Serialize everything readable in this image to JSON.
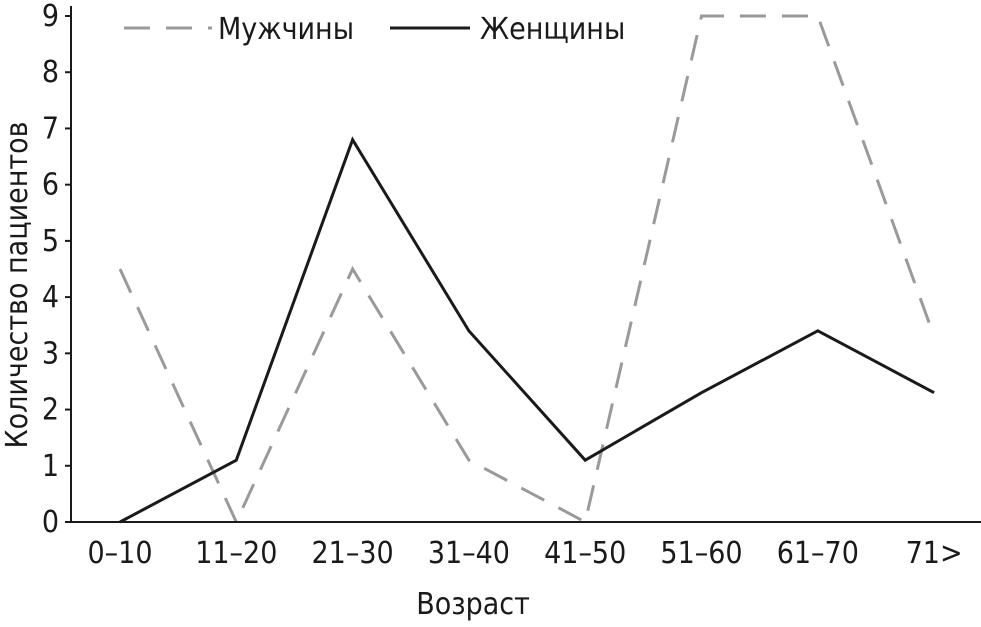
{
  "chart_data": {
    "type": "line",
    "title": "",
    "xlabel": "Возраст",
    "ylabel": "Количество пациентов",
    "categories": [
      "0–10",
      "11–20",
      "21–30",
      "31–40",
      "41–50",
      "51–60",
      "61–70",
      "71>"
    ],
    "yticks": [
      "0",
      "1",
      "2",
      "3",
      "4",
      "5",
      "6",
      "7",
      "8",
      "9"
    ],
    "ylim": [
      0,
      9
    ],
    "grid": false,
    "legend_position": "top",
    "series": [
      {
        "name": "Мужчины",
        "style": "dashed",
        "color": "#9a9a9a",
        "values": [
          4.5,
          0,
          4.5,
          1.1,
          0,
          9,
          9,
          3.3
        ]
      },
      {
        "name": "Женщины",
        "style": "solid",
        "color": "#1a1a1a",
        "values": [
          0,
          1.1,
          6.8,
          3.4,
          1.1,
          2.3,
          3.4,
          2.3
        ]
      }
    ]
  }
}
